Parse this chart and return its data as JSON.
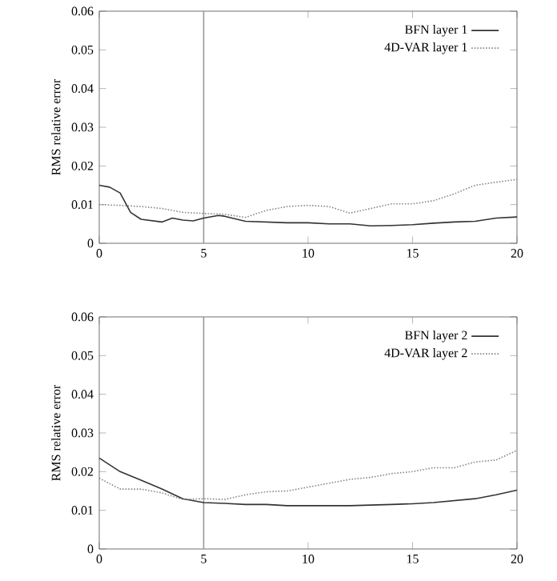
{
  "chart_data": [
    {
      "type": "line",
      "ylabel": "RMS relative error",
      "xlim": [
        0,
        20
      ],
      "ylim": [
        0,
        0.06
      ],
      "xticks": [
        0,
        5,
        10,
        15,
        20
      ],
      "yticks": [
        0,
        0.01,
        0.02,
        0.03,
        0.04,
        0.05,
        0.06
      ],
      "legend": "top right",
      "grid": false,
      "ref_lines": [
        {
          "axis": "x",
          "value": 5,
          "color": "#999999"
        }
      ],
      "series": [
        {
          "name": "BFN layer 1",
          "color": "#333333",
          "line_style": "solid",
          "x": [
            0,
            0.5,
            1,
            1.5,
            2,
            3,
            3.5,
            4,
            4.5,
            5,
            5.7,
            6,
            7,
            8,
            9,
            10,
            11,
            12,
            13,
            14,
            15,
            16,
            17,
            18,
            19,
            20
          ],
          "values": [
            0.015,
            0.0145,
            0.013,
            0.008,
            0.0062,
            0.0055,
            0.0065,
            0.006,
            0.0058,
            0.0065,
            0.0072,
            0.007,
            0.0057,
            0.0055,
            0.0053,
            0.0053,
            0.005,
            0.005,
            0.0045,
            0.0046,
            0.0048,
            0.0052,
            0.0055,
            0.0057,
            0.0065,
            0.0068
          ]
        },
        {
          "name": "4D-VAR layer 1",
          "color": "#888888",
          "line_style": "dotted",
          "x": [
            0,
            1,
            2,
            3,
            4,
            5,
            6,
            7,
            8,
            9,
            10,
            11,
            12,
            13,
            14,
            15,
            16,
            17,
            18,
            19,
            20
          ],
          "values": [
            0.01,
            0.0098,
            0.0095,
            0.009,
            0.008,
            0.0077,
            0.0075,
            0.0067,
            0.0085,
            0.0095,
            0.0098,
            0.0095,
            0.0078,
            0.009,
            0.0102,
            0.0102,
            0.011,
            0.0128,
            0.015,
            0.0158,
            0.0165
          ]
        }
      ]
    },
    {
      "type": "line",
      "ylabel": "RMS relative error",
      "xlim": [
        0,
        20
      ],
      "ylim": [
        0,
        0.06
      ],
      "xticks": [
        0,
        5,
        10,
        15,
        20
      ],
      "yticks": [
        0,
        0.01,
        0.02,
        0.03,
        0.04,
        0.05,
        0.06
      ],
      "legend": "top right",
      "grid": false,
      "ref_lines": [
        {
          "axis": "x",
          "value": 5,
          "color": "#999999"
        }
      ],
      "series": [
        {
          "name": "BFN layer 2",
          "color": "#333333",
          "line_style": "solid",
          "x": [
            0,
            1,
            2,
            3,
            4,
            5,
            6,
            7,
            8,
            9,
            10,
            12,
            14,
            15,
            16,
            17,
            18,
            19,
            20
          ],
          "values": [
            0.0235,
            0.02,
            0.0178,
            0.0155,
            0.013,
            0.012,
            0.0118,
            0.0115,
            0.0115,
            0.0112,
            0.0112,
            0.0112,
            0.0115,
            0.0117,
            0.012,
            0.0125,
            0.013,
            0.014,
            0.0152
          ]
        },
        {
          "name": "4D-VAR layer 2",
          "color": "#888888",
          "line_style": "dotted",
          "x": [
            0,
            1,
            2,
            3,
            4,
            5,
            6,
            7,
            8,
            9,
            10,
            11,
            12,
            13,
            14,
            15,
            16,
            17,
            18,
            19,
            20
          ],
          "values": [
            0.0183,
            0.0155,
            0.0155,
            0.0145,
            0.0128,
            0.013,
            0.0128,
            0.014,
            0.0148,
            0.015,
            0.016,
            0.017,
            0.018,
            0.0185,
            0.0195,
            0.02,
            0.021,
            0.021,
            0.0225,
            0.023,
            0.0255
          ]
        }
      ]
    }
  ]
}
